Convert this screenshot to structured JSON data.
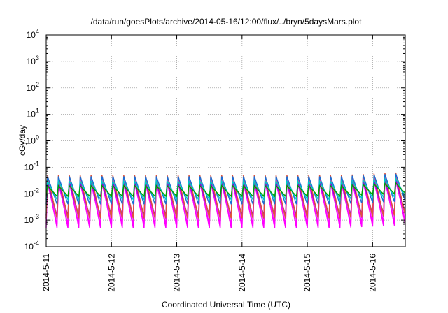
{
  "chart_data": {
    "type": "line",
    "title": "/data/run/goesPlots/archive/2014-05-16/12:00/flux/../bryn/5daysMars.plot",
    "xlabel": "Coordinated Universal Time (UTC)",
    "ylabel": "cGy/day",
    "yscale": "log",
    "ylim": [
      0.0001,
      10000
    ],
    "xlim": [
      "2014-05-11T00:00",
      "2014-05-16T12:00"
    ],
    "grid": true,
    "legend": "none",
    "x_ticks": [
      "2014-5-11",
      "2014-5-12",
      "2014-5-13",
      "2014-5-14",
      "2014-5-15",
      "2014-5-16"
    ],
    "y_ticks": [
      {
        "base": "10",
        "exp": "-4"
      },
      {
        "base": "10",
        "exp": "-3"
      },
      {
        "base": "10",
        "exp": "-2"
      },
      {
        "base": "10",
        "exp": "-1"
      },
      {
        "base": "10",
        "exp": "0"
      },
      {
        "base": "10",
        "exp": "1"
      },
      {
        "base": "10",
        "exp": "2"
      },
      {
        "base": "10",
        "exp": "3"
      },
      {
        "base": "10",
        "exp": "4"
      }
    ],
    "cycles_per_day": 6,
    "series": [
      {
        "color": "#ff00ff",
        "peak": 0.035,
        "trough": 0.0005
      },
      {
        "color": "#ff00ff",
        "peak": 0.025,
        "trough": 0.0007
      },
      {
        "color": "#cc33cc",
        "peak": 0.03,
        "trough": 0.0011
      },
      {
        "color": "#9400d3",
        "peak": 0.028,
        "trough": 0.0015
      },
      {
        "color": "#e2543a",
        "peak": 0.05,
        "trough": 0.0012
      },
      {
        "color": "#1a6fd6",
        "peak": 0.045,
        "trough": 0.004
      },
      {
        "color": "#00c8c8",
        "peak": 0.03,
        "trough": 0.006
      },
      {
        "color": "#00a000",
        "peak": 0.02,
        "trough": 0.008
      }
    ]
  }
}
